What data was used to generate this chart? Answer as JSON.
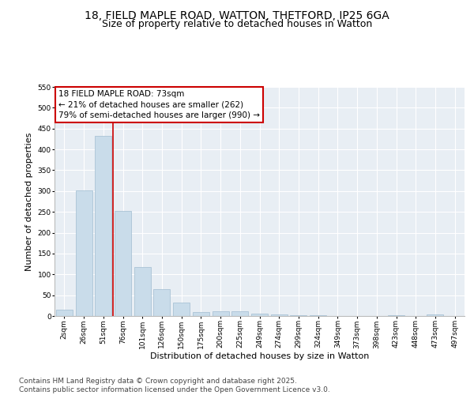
{
  "title_line1": "18, FIELD MAPLE ROAD, WATTON, THETFORD, IP25 6GA",
  "title_line2": "Size of property relative to detached houses in Watton",
  "xlabel": "Distribution of detached houses by size in Watton",
  "ylabel": "Number of detached properties",
  "bar_labels": [
    "2sqm",
    "26sqm",
    "51sqm",
    "76sqm",
    "101sqm",
    "126sqm",
    "150sqm",
    "175sqm",
    "200sqm",
    "225sqm",
    "249sqm",
    "274sqm",
    "299sqm",
    "324sqm",
    "349sqm",
    "373sqm",
    "398sqm",
    "423sqm",
    "448sqm",
    "473sqm",
    "497sqm"
  ],
  "bar_values": [
    15,
    302,
    432,
    253,
    117,
    65,
    33,
    9,
    11,
    12,
    5,
    4,
    1,
    1,
    0,
    0,
    0,
    1,
    0,
    4,
    0
  ],
  "bar_color": "#c9dcea",
  "bar_edge_color": "#a0bdd0",
  "background_color": "#e8eef4",
  "grid_color": "#ffffff",
  "annotation_line1": "18 FIELD MAPLE ROAD: 73sqm",
  "annotation_line2": "← 21% of detached houses are smaller (262)",
  "annotation_line3": "79% of semi-detached houses are larger (990) →",
  "annotation_box_color": "#cc0000",
  "annotation_box_fill": "#ffffff",
  "vline_color": "#cc0000",
  "ylim": [
    0,
    550
  ],
  "yticks": [
    0,
    50,
    100,
    150,
    200,
    250,
    300,
    350,
    400,
    450,
    500,
    550
  ],
  "footer_text": "Contains HM Land Registry data © Crown copyright and database right 2025.\nContains public sector information licensed under the Open Government Licence v3.0.",
  "title_fontsize": 10,
  "subtitle_fontsize": 9,
  "axis_label_fontsize": 8,
  "tick_fontsize": 6.5,
  "footer_fontsize": 6.5,
  "annot_fontsize": 7.5
}
